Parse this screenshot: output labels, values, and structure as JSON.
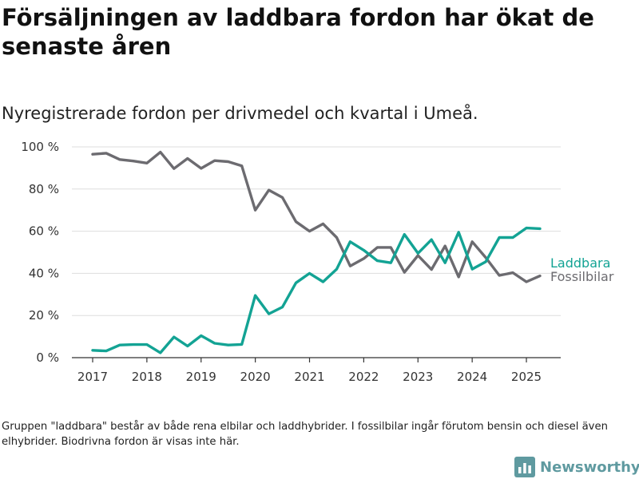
{
  "header": {
    "title": "Försäljningen av laddbara fordon har ökat de senaste åren",
    "subtitle": "Nyregistrerade fordon per drivmedel och kvartal i Umeå."
  },
  "footer": {
    "note": "Gruppen \"laddbara\" består av både rena elbilar och laddhybrider. I fossilbilar ingår förutom bensin och diesel även elhybrider. Biodrivna fordon är visas inte här.",
    "brand": "Newsworthy",
    "brand_icon": "bar-chart-icon"
  },
  "colors": {
    "laddbara": "#13a394",
    "fossilbilar": "#6c6b70",
    "brand": "#5f9aa0",
    "grid": "#dddddd",
    "axis": "#333333"
  },
  "chart_data": {
    "type": "line",
    "title": "Försäljningen av laddbara fordon har ökat de senaste åren",
    "subtitle": "Nyregistrerade fordon per drivmedel och kvartal i Umeå.",
    "xlabel": "",
    "ylabel": "",
    "x_ticks": [
      "2017",
      "2018",
      "2019",
      "2020",
      "2021",
      "2022",
      "2023",
      "2024",
      "2025"
    ],
    "y_ticks": [
      "0 %",
      "20 %",
      "40 %",
      "60 %",
      "80 %",
      "100 %"
    ],
    "ylim": [
      0,
      100
    ],
    "grid": "horizontal",
    "legend": "direct labels at line ends (right)",
    "x": [
      "2017 Q1",
      "2017 Q2",
      "2017 Q3",
      "2017 Q4",
      "2018 Q1",
      "2018 Q2",
      "2018 Q3",
      "2018 Q4",
      "2019 Q1",
      "2019 Q2",
      "2019 Q3",
      "2019 Q4",
      "2020 Q1",
      "2020 Q2",
      "2020 Q3",
      "2020 Q4",
      "2021 Q1",
      "2021 Q2",
      "2021 Q3",
      "2021 Q4",
      "2022 Q1",
      "2022 Q2",
      "2022 Q3",
      "2022 Q4",
      "2023 Q1",
      "2023 Q2",
      "2023 Q3",
      "2023 Q4",
      "2024 Q1",
      "2024 Q2",
      "2024 Q3",
      "2024 Q4",
      "2025 Q1",
      "2025 Q2"
    ],
    "series": [
      {
        "name": "Laddbara",
        "values": [
          3.5,
          3.2,
          6.0,
          6.2,
          6.2,
          2.3,
          9.8,
          5.5,
          10.4,
          6.8,
          6.0,
          6.3,
          29.5,
          20.8,
          24.0,
          35.5,
          40.0,
          36.0,
          42.0,
          55.0,
          51.0,
          46.0,
          45.0,
          58.5,
          49.5,
          56.0,
          45.0,
          59.5,
          42.0,
          45.5,
          57.0,
          57.0,
          61.5,
          61.2
        ]
      },
      {
        "name": "Fossilbilar",
        "values": [
          96.5,
          97.0,
          94.0,
          93.3,
          92.3,
          97.5,
          89.7,
          94.5,
          89.8,
          93.5,
          93.0,
          91.0,
          70.0,
          79.5,
          76.0,
          64.5,
          60.0,
          63.5,
          57.0,
          43.5,
          47.0,
          52.3,
          52.3,
          40.5,
          48.5,
          41.8,
          53.0,
          38.3,
          55.0,
          47.5,
          39.0,
          40.3,
          36.0,
          38.8
        ]
      }
    ]
  }
}
